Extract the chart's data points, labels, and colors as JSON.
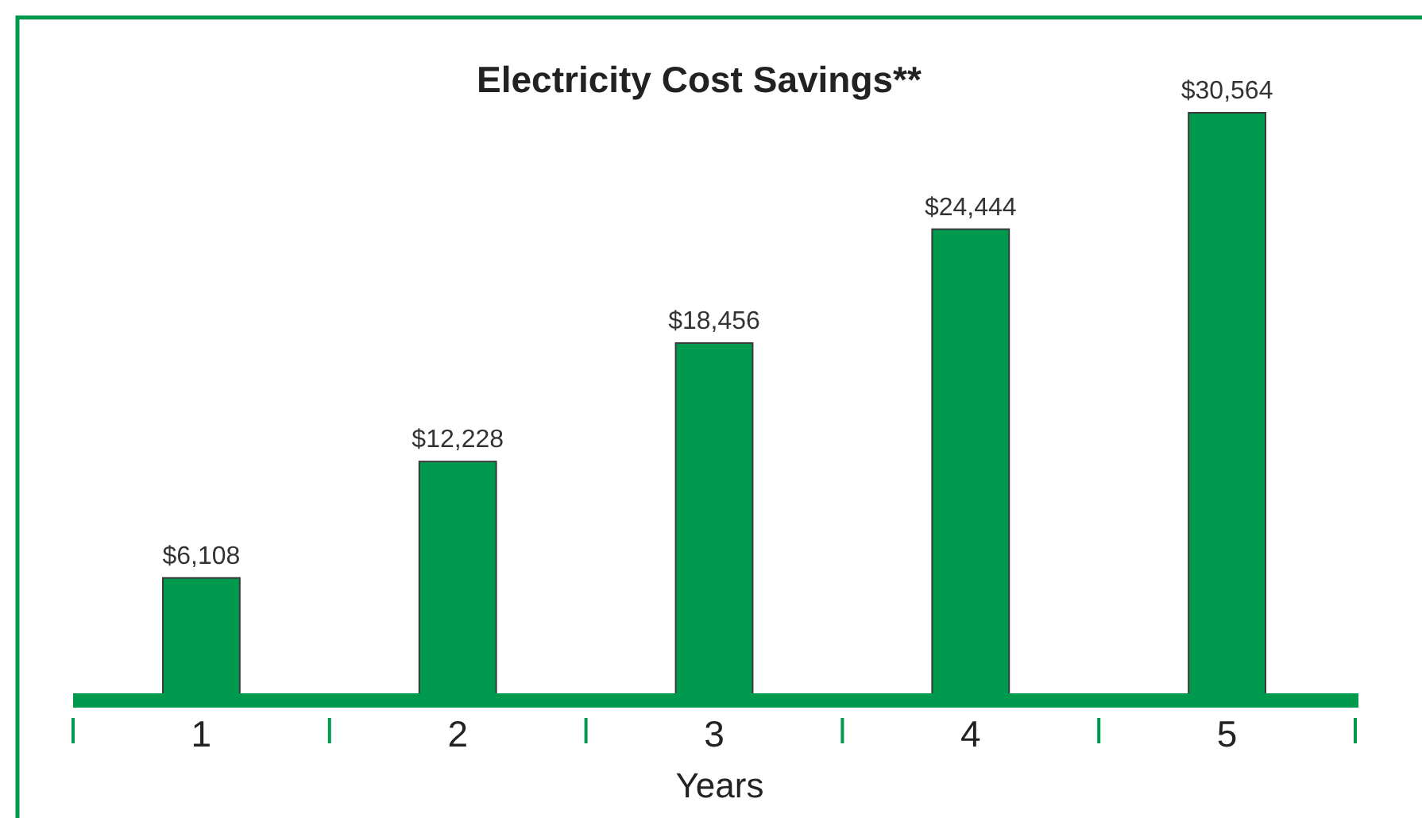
{
  "chart_data": {
    "type": "bar",
    "title": "Electricity Cost Savings**",
    "xlabel": "Years",
    "categories": [
      "1",
      "2",
      "3",
      "4",
      "5"
    ],
    "values": [
      6108,
      12228,
      18456,
      24444,
      30564
    ],
    "value_labels": [
      "$6,108",
      "$12,228",
      "$18,456",
      "$24,444",
      "$30,564"
    ],
    "color": "#009a4e",
    "legend": false,
    "grid": false
  }
}
